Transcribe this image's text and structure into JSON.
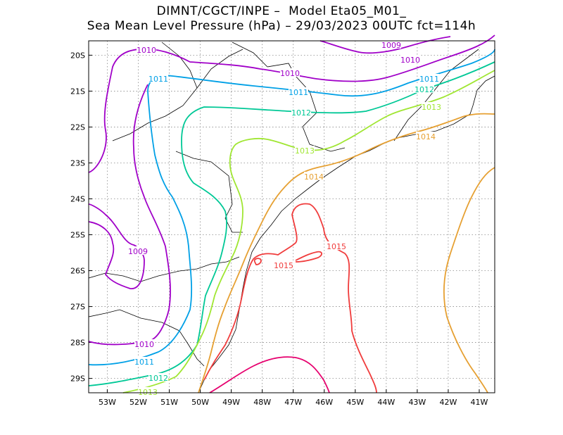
{
  "title": {
    "line1": "DIMNT/CGCT/INPE –  Model Eta05_M01_",
    "line2": "Sea Mean Level Pressure (hPa) – 29/03/2023 00UTC fct=114h"
  },
  "axes": {
    "lat_ticks": [
      "20S",
      "21S",
      "22S",
      "23S",
      "24S",
      "25S",
      "26S",
      "27S",
      "28S",
      "29S"
    ],
    "lon_ticks": [
      "53W",
      "52W",
      "51W",
      "50W",
      "49W",
      "48W",
      "47W",
      "46W",
      "45W",
      "44W",
      "43W",
      "42W",
      "41W"
    ],
    "lat_values": [
      -20,
      -21,
      -22,
      -23,
      -24,
      -25,
      -26,
      -27,
      -28,
      -29
    ],
    "lon_values": [
      -53,
      -52,
      -51,
      -50,
      -49,
      -48,
      -47,
      -46,
      -45,
      -44,
      -43,
      -42,
      -41
    ],
    "lon_range": [
      -53.6,
      -40.5
    ],
    "lat_range": [
      -29.4,
      -19.6
    ],
    "grid": "dotted"
  },
  "contours": {
    "colors": {
      "1009": "#a000c8",
      "1010": "#a000c8",
      "1011": "#00a0e6",
      "1012": "#00c896",
      "1013": "#a0e632",
      "1014": "#e6a032",
      "1015": "#f03c3c",
      "1016": "#e6006e"
    },
    "labels": [
      {
        "text": "1010",
        "level": "1010"
      },
      {
        "text": "1010",
        "level": "1010"
      },
      {
        "text": "1009",
        "level": "1009"
      },
      {
        "text": "1010",
        "level": "1010"
      },
      {
        "text": "1011",
        "level": "1011"
      },
      {
        "text": "1011",
        "level": "1011"
      },
      {
        "text": "1011",
        "level": "1011"
      },
      {
        "text": "1012",
        "level": "1012"
      },
      {
        "text": "1012",
        "level": "1012"
      },
      {
        "text": "1013",
        "level": "1013"
      },
      {
        "text": "1013",
        "level": "1013"
      },
      {
        "text": "1014",
        "level": "1014"
      },
      {
        "text": "1014",
        "level": "1014"
      },
      {
        "text": "1015",
        "level": "1015"
      },
      {
        "text": "1015",
        "level": "1015"
      },
      {
        "text": "1009",
        "level": "1009"
      },
      {
        "text": "1010",
        "level": "1010"
      },
      {
        "text": "1011",
        "level": "1011"
      },
      {
        "text": "1012",
        "level": "1012"
      },
      {
        "text": "1013",
        "level": "1013"
      }
    ]
  }
}
